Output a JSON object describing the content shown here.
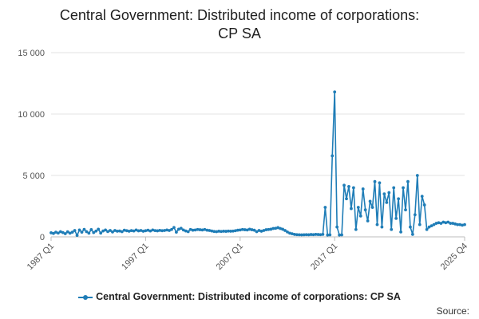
{
  "chart_data": {
    "type": "line",
    "title_lines": [
      "Central Government: Distributed income of corporations:",
      "CP SA"
    ],
    "series": [
      {
        "name": "Central Government: Distributed income of corporations: CP SA",
        "color": "#1f7db7",
        "values": [
          330,
          280,
          380,
          310,
          420,
          350,
          260,
          410,
          300,
          380,
          520,
          120,
          560,
          380,
          610,
          420,
          300,
          590,
          350,
          470,
          620,
          310,
          480,
          560,
          430,
          520,
          400,
          520,
          460,
          480,
          420,
          540,
          500,
          460,
          510,
          480,
          560,
          490,
          520,
          460,
          500,
          540,
          480,
          560,
          510,
          490,
          530,
          500,
          520,
          560,
          520,
          600,
          760,
          380,
          620,
          700,
          560,
          480,
          420,
          600,
          540,
          560,
          600,
          580,
          560,
          600,
          540,
          520,
          480,
          440,
          420,
          460,
          440,
          460,
          450,
          470,
          460,
          470,
          500,
          540,
          560,
          600,
          580,
          560,
          620,
          580,
          540,
          420,
          520,
          460,
          520,
          580,
          600,
          620,
          680,
          700,
          750,
          680,
          620,
          520,
          400,
          300,
          250,
          200,
          180,
          170,
          160,
          170,
          180,
          170,
          190,
          180,
          200,
          190,
          180,
          200,
          2400,
          150,
          160,
          6600,
          11800,
          800,
          150,
          160,
          4200,
          3100,
          4100,
          2300,
          4000,
          600,
          2400,
          1700,
          3900,
          2200,
          1300,
          2900,
          2400,
          4500,
          1000,
          4400,
          800,
          3500,
          2800,
          3600,
          600,
          4000,
          1500,
          3100,
          400,
          4000,
          2200,
          4500,
          800,
          200,
          1800,
          5000,
          1000,
          3300,
          2600,
          600,
          800,
          900,
          1000,
          1100,
          1150,
          1100,
          1200,
          1150,
          1200,
          1100,
          1100,
          1050,
          1000,
          1000,
          950,
          1000
        ]
      }
    ],
    "x_tick_labels": [
      "1987 Q1",
      "1997 Q1",
      "2007 Q1",
      "2017 Q1",
      "2025 Q4"
    ],
    "y_tick_labels": [
      "0",
      "5 000",
      "10 000",
      "15 000"
    ],
    "y_ticks": [
      0,
      5000,
      10000,
      15000
    ],
    "ylim": [
      0,
      15000
    ],
    "grid": "horizontal",
    "legend_position": "bottom"
  },
  "source_label": "Source:"
}
